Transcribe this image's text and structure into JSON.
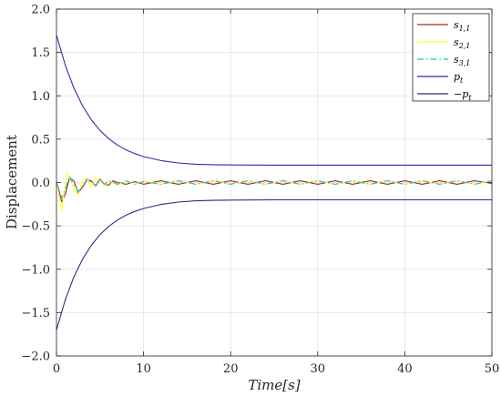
{
  "chart_data": {
    "type": "line",
    "title": "",
    "xlabel": "Time[s]",
    "ylabel": "Displacement",
    "xlim": [
      0,
      50
    ],
    "ylim": [
      -2.0,
      2.0
    ],
    "x_ticks": [
      "0",
      "10",
      "20",
      "30",
      "40",
      "50"
    ],
    "y_ticks": [
      "2.0",
      "1.5",
      "1.0",
      "0.5",
      "0.0",
      "-0.5",
      "-1.0",
      "-1.5",
      "-2.0"
    ],
    "grid": true,
    "legend_position": "top-right",
    "series": [
      {
        "name": "s1,1",
        "label_base": "s",
        "label_sub": "1,1",
        "color": "#a52a2a",
        "dash": "solid",
        "x": [
          0,
          0.3,
          0.6,
          1.0,
          1.5,
          2.0,
          2.5,
          3.0,
          3.5,
          4.0,
          4.5,
          5.0,
          5.5,
          6.0,
          6.5,
          7.0,
          8.0,
          9.0,
          10.0,
          12.0,
          14.0,
          16.0,
          18.0,
          20.0,
          22.0,
          24.0,
          26.0,
          28.0,
          30.0,
          32.0,
          34.0,
          36.0,
          38.0,
          40.0,
          42.0,
          44.0,
          46.0,
          48.0,
          50.0
        ],
        "y": [
          0,
          -0.1,
          -0.22,
          -0.14,
          0.05,
          0.02,
          -0.12,
          -0.05,
          0.03,
          0.02,
          -0.04,
          0.04,
          -0.02,
          -0.03,
          0.02,
          0.0,
          -0.02,
          0.01,
          -0.02,
          0.02,
          -0.02,
          0.02,
          -0.02,
          0.02,
          -0.02,
          0.02,
          -0.02,
          0.02,
          -0.02,
          0.02,
          -0.02,
          0.02,
          -0.02,
          0.02,
          -0.02,
          0.02,
          -0.02,
          0.02,
          -0.01
        ]
      },
      {
        "name": "s2,1",
        "label_base": "s",
        "label_sub": "2,1",
        "color": "#ffff33",
        "dash": "solid",
        "x": [
          0,
          0.3,
          0.6,
          0.9,
          1.2,
          1.5,
          2.0,
          2.5,
          3.0,
          3.5,
          4.0,
          4.5,
          5.0,
          5.5,
          6.0,
          7.0,
          8.0,
          9.0,
          10.0,
          12.0,
          14.0,
          16.0,
          18.0,
          20.0,
          22.0,
          24.0,
          26.0,
          28.0,
          30.0,
          32.0,
          34.0,
          36.0,
          38.0,
          40.0,
          42.0,
          44.0,
          46.0,
          48.0,
          50.0
        ],
        "y": [
          0,
          -0.15,
          -0.32,
          -0.1,
          0.12,
          0.06,
          -0.08,
          -0.14,
          0.03,
          0.05,
          -0.05,
          0.05,
          0.03,
          -0.04,
          0.02,
          -0.03,
          0.02,
          -0.02,
          0.02,
          -0.02,
          0.02,
          -0.02,
          0.02,
          -0.02,
          0.02,
          -0.02,
          0.02,
          -0.02,
          0.02,
          -0.02,
          0.02,
          -0.02,
          0.02,
          -0.02,
          0.02,
          -0.02,
          0.02,
          -0.02,
          0.02
        ]
      },
      {
        "name": "s3,1",
        "label_base": "s",
        "label_sub": "3,1",
        "color": "#20c0c0",
        "dash": "dashdot",
        "x": [
          0,
          0.3,
          0.6,
          1.0,
          1.5,
          2.0,
          2.5,
          3.0,
          3.5,
          4.0,
          4.5,
          5.0,
          5.5,
          6.0,
          7.0,
          8.0,
          9.0,
          10.0,
          12.0,
          14.0,
          16.0,
          18.0,
          20.0,
          22.0,
          24.0,
          26.0,
          28.0,
          30.0,
          32.0,
          34.0,
          36.0,
          38.0,
          40.0,
          42.0,
          44.0,
          46.0,
          48.0,
          50.0
        ],
        "y": [
          0,
          -0.08,
          -0.18,
          -0.08,
          0.07,
          -0.03,
          -0.1,
          -0.04,
          0.04,
          0.0,
          -0.03,
          0.03,
          -0.02,
          0.02,
          -0.02,
          0.02,
          -0.02,
          0.01,
          -0.02,
          0.02,
          -0.02,
          0.02,
          -0.02,
          0.02,
          -0.02,
          0.02,
          -0.02,
          0.02,
          -0.02,
          0.02,
          -0.02,
          0.02,
          -0.02,
          0.02,
          -0.02,
          0.02,
          -0.02,
          0.02
        ]
      },
      {
        "name": "pt",
        "label_base": "p",
        "label_sub": "t",
        "color": "#2b2bb0",
        "dash": "solid",
        "x": [
          0,
          1,
          2,
          3,
          4,
          5,
          6,
          7,
          8,
          9,
          10,
          12,
          14,
          16,
          18,
          20,
          25,
          30,
          40,
          50
        ],
        "y": [
          1.7,
          1.355,
          1.089,
          0.883,
          0.724,
          0.601,
          0.506,
          0.433,
          0.376,
          0.333,
          0.299,
          0.253,
          0.226,
          0.211,
          0.206,
          0.203,
          0.2,
          0.2,
          0.2,
          0.2
        ]
      },
      {
        "name": "-pt",
        "label_base": "−p",
        "label_sub": "t",
        "color": "#2b2b80",
        "dash": "solid",
        "x": [
          0,
          1,
          2,
          3,
          4,
          5,
          6,
          7,
          8,
          9,
          10,
          12,
          14,
          16,
          18,
          20,
          25,
          30,
          40,
          50
        ],
        "y": [
          -1.7,
          -1.355,
          -1.089,
          -0.883,
          -0.724,
          -0.601,
          -0.506,
          -0.433,
          -0.376,
          -0.333,
          -0.299,
          -0.253,
          -0.226,
          -0.211,
          -0.206,
          -0.203,
          -0.2,
          -0.2,
          -0.2,
          -0.2
        ]
      }
    ]
  }
}
